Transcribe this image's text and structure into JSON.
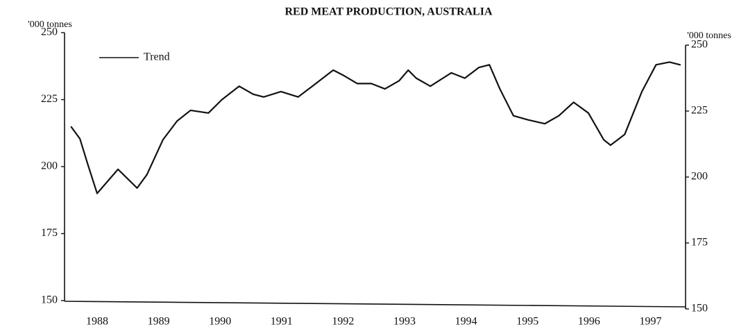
{
  "chart_data": {
    "type": "line",
    "title": "RED MEAT PRODUCTION, AUSTRALIA",
    "y_label": "'000 tonnes",
    "y2_label": "'000 tonnes",
    "x": [
      1987.58,
      1987.72,
      1987.86,
      1988.0,
      1988.34,
      1988.65,
      1988.81,
      1989.07,
      1989.3,
      1989.52,
      1989.81,
      1990.03,
      1990.31,
      1990.54,
      1990.71,
      1990.99,
      1991.27,
      1991.5,
      1991.84,
      1992.01,
      1992.23,
      1992.46,
      1992.68,
      1992.91,
      1993.06,
      1993.19,
      1993.42,
      1993.76,
      1993.98,
      1994.21,
      1994.38,
      1994.55,
      1994.77,
      1995.0,
      1995.28,
      1995.51,
      1995.75,
      1995.99,
      1996.24,
      1996.35,
      1996.58,
      1996.86,
      1997.09,
      1997.31,
      1997.48
    ],
    "series": [
      {
        "name": "Trend",
        "color": "#111111",
        "values": [
          214.8,
          210.4,
          200,
          190,
          199,
          192,
          197,
          210,
          217,
          221,
          220,
          225,
          230,
          227,
          226,
          228,
          226,
          230,
          236,
          234,
          231,
          231,
          229,
          232,
          236,
          233,
          230,
          235,
          233,
          237,
          238,
          229,
          219,
          217.5,
          216,
          219,
          224,
          220,
          210,
          208,
          212,
          228,
          238,
          239,
          238
        ]
      }
    ],
    "xlim": [
      1987.47,
      1997.57
    ],
    "xticks": [
      1988,
      1989,
      1990,
      1991,
      1992,
      1993,
      1994,
      1995,
      1996,
      1997
    ],
    "ylim": [
      150,
      250
    ],
    "yticks": [
      150,
      175,
      200,
      225,
      250
    ],
    "y2lim": [
      150,
      250
    ],
    "y2ticks": [
      150,
      175,
      200,
      225,
      250
    ],
    "grid": false,
    "legend": "top-left"
  }
}
